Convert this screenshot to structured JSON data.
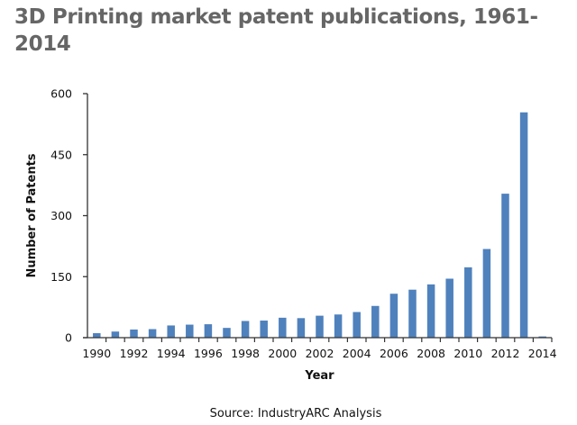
{
  "page": {
    "title": "3D Printing market patent publications, 1961-2014"
  },
  "chart_data": {
    "type": "bar",
    "title": "3D Printing market patent publications, 1961-2014",
    "xlabel": "Year",
    "ylabel": "Number of Patents",
    "source": "Source: IndustryARC Analysis",
    "ylim": [
      0,
      600
    ],
    "yticks": [
      0,
      150,
      300,
      450,
      600
    ],
    "xtick_labels": [
      "1990",
      "1992",
      "1994",
      "1996",
      "1998",
      "2000",
      "2002",
      "2004",
      "2006",
      "2008",
      "2010",
      "2012",
      "2014"
    ],
    "categories": [
      "1990",
      "1991",
      "1992",
      "1993",
      "1994",
      "1995",
      "1996",
      "1997",
      "1998",
      "1999",
      "2000",
      "2001",
      "2002",
      "2003",
      "2004",
      "2005",
      "2006",
      "2007",
      "2008",
      "2009",
      "2010",
      "2011",
      "2012",
      "2013",
      "2014"
    ],
    "values": [
      11,
      15,
      20,
      21,
      30,
      32,
      33,
      24,
      41,
      42,
      49,
      48,
      54,
      57,
      63,
      78,
      108,
      118,
      131,
      145,
      173,
      218,
      354,
      554,
      3
    ],
    "bar_color": "#4f81bd",
    "grid": false,
    "legend": "none"
  }
}
